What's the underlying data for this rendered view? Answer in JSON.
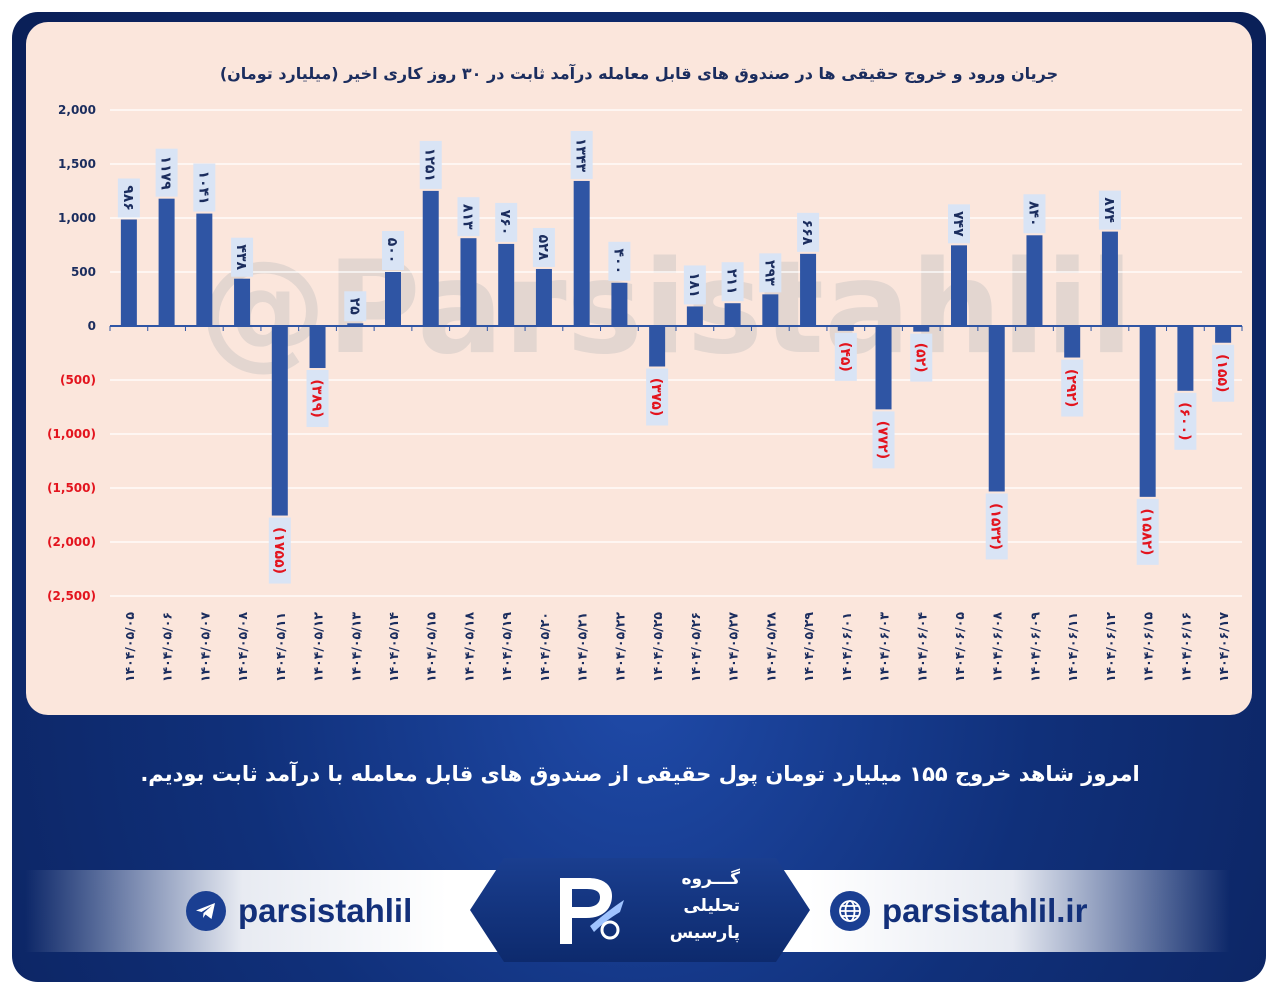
{
  "chart_data": {
    "type": "bar",
    "title": "جریان ورود و خروج حقیقی ها در صندوق های قابل معامله درآمد ثابت در ۳۰ روز کاری اخیر (میلیارد تومان)",
    "watermark": "@Parsistahlil",
    "ylim": [
      -2500,
      2000
    ],
    "yticks": [
      {
        "value": 2000,
        "label": "2,000"
      },
      {
        "value": 1500,
        "label": "1,500"
      },
      {
        "value": 1000,
        "label": "1,000"
      },
      {
        "value": 500,
        "label": "500"
      },
      {
        "value": 0,
        "label": "0"
      },
      {
        "value": -500,
        "label": "(500)"
      },
      {
        "value": -1000,
        "label": "(1,000)"
      },
      {
        "value": -1500,
        "label": "(1,500)"
      },
      {
        "value": -2000,
        "label": "(2,000)"
      },
      {
        "value": -2500,
        "label": "(2,500)"
      }
    ],
    "categories": [
      "۱۴۰۴/۰۵/۰۵",
      "۱۴۰۴/۰۵/۰۶",
      "۱۴۰۴/۰۵/۰۷",
      "۱۴۰۴/۰۵/۰۸",
      "۱۴۰۴/۰۵/۱۱",
      "۱۴۰۴/۰۵/۱۲",
      "۱۴۰۴/۰۵/۱۳",
      "۱۴۰۴/۰۵/۱۴",
      "۱۴۰۴/۰۵/۱۵",
      "۱۴۰۴/۰۵/۱۸",
      "۱۴۰۴/۰۵/۱۹",
      "۱۴۰۴/۰۵/۲۰",
      "۱۴۰۴/۰۵/۲۱",
      "۱۴۰۴/۰۵/۲۲",
      "۱۴۰۴/۰۵/۲۵",
      "۱۴۰۴/۰۵/۲۶",
      "۱۴۰۴/۰۵/۲۷",
      "۱۴۰۴/۰۵/۲۸",
      "۱۴۰۴/۰۵/۲۹",
      "۱۴۰۴/۰۶/۰۱",
      "۱۴۰۴/۰۶/۰۳",
      "۱۴۰۴/۰۶/۰۴",
      "۱۴۰۴/۰۶/۰۵",
      "۱۴۰۴/۰۶/۰۸",
      "۱۴۰۴/۰۶/۰۹",
      "۱۴۰۴/۰۶/۱۱",
      "۱۴۰۴/۰۶/۱۲",
      "۱۴۰۴/۰۶/۱۵",
      "۱۴۰۴/۰۶/۱۶",
      "۱۴۰۴/۰۶/۱۷"
    ],
    "values": [
      986,
      1179,
      1041,
      438,
      -1755,
      -389,
      25,
      500,
      1251,
      813,
      760,
      528,
      1343,
      400,
      -375,
      181,
      211,
      293,
      668,
      -45,
      -772,
      -52,
      747,
      -1532,
      840,
      -292,
      874,
      -1582,
      -600,
      -155
    ],
    "labels": [
      "۹۸۶",
      "۱۱۷۹",
      "۱۰۴۱",
      "۴۳۸",
      "(۱۷۵۵)",
      "(۳۸۹)",
      "۲۵",
      "۵۰۰",
      "۱۲۵۱",
      "۸۱۳",
      "۷۶۰",
      "۵۲۸",
      "۱۳۴۳",
      "۴۰۰",
      "(۳۷۵)",
      "۱۸۱",
      "۲۱۱",
      "۲۹۳",
      "۶۶۸",
      "(۴۵)",
      "(۷۷۲)",
      "(۵۲)",
      "۷۴۷",
      "(۱۵۳۲)",
      "۸۴۰",
      "(۲۹۲)",
      "۸۷۴",
      "(۱۵۸۲)",
      "(۶۰۰)",
      "(۱۵۵)"
    ],
    "bar_color": "#2f55a4",
    "negative_label_color": "#e3141e",
    "positive_label_color": "#1b2d5e",
    "label_box_color": "#d9e4f5",
    "grid": true
  },
  "summary": "امروز شاهد خروج ۱۵۵ میلیارد تومان پول حقیقی از صندوق های قابل معامله با درآمد ثابت بودیم.",
  "footer": {
    "telegram_handle": "parsistahlil",
    "website": "parsistahlil.ir",
    "logo_lines": [
      "گـــروه",
      "تحلیلی",
      "پارسیس"
    ],
    "brand_color": "#13307a"
  }
}
